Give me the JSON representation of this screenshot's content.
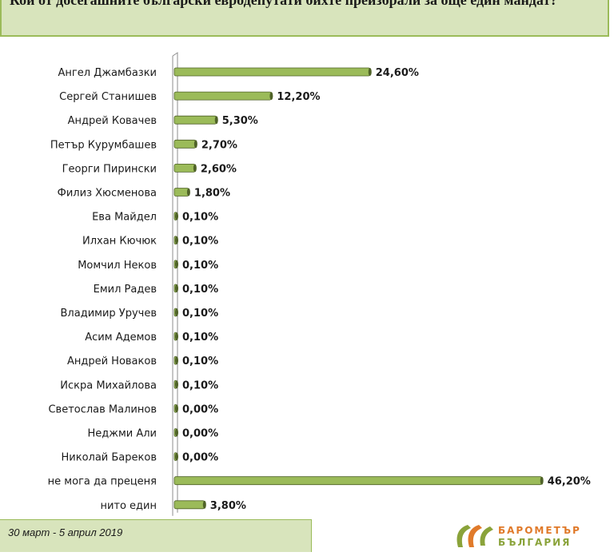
{
  "title": "Кои от досегашните български евродепутати бихте преизбрали за още един мандат?",
  "footer": {
    "period": "30 март - 5 април 2019"
  },
  "logo": {
    "line1": "БАРОМЕТЪР",
    "line2": "БЪЛГАРИЯ"
  },
  "colors": {
    "bar": "#9bbb59",
    "bar_dark": "#4f6228",
    "title_bg": "#d8e4bc",
    "logo_orange": "#e07a2a",
    "logo_green": "#8aa33a"
  },
  "chart_data": {
    "type": "bar",
    "orientation": "horizontal",
    "categories": [
      "Ангел Джамбазки",
      "Сергей Станишев",
      "Андрей Ковачев",
      "Петър Курумбашев",
      "Георги Пирински",
      "Филиз Хюсменова",
      "Ева Майдел",
      "Илхан Кючюк",
      "Момчил Неков",
      "Емил Радев",
      "Владимир Уручев",
      "Асим Адемов",
      "Андрей Новаков",
      "Искра Михайлова",
      "Светослав Малинов",
      "Неджми Али",
      "Николай Бареков",
      "не мога да преценя",
      "нито един"
    ],
    "values": [
      24.6,
      12.2,
      5.3,
      2.7,
      2.6,
      1.8,
      0.1,
      0.1,
      0.1,
      0.1,
      0.1,
      0.1,
      0.1,
      0.1,
      0.0,
      0.0,
      0.0,
      46.2,
      3.8
    ],
    "labels": [
      "24,60%",
      "12,20%",
      "5,30%",
      "2,70%",
      "2,60%",
      "1,80%",
      "0,10%",
      "0,10%",
      "0,10%",
      "0,10%",
      "0,10%",
      "0,10%",
      "0,10%",
      "0,10%",
      "0,00%",
      "0,00%",
      "0,00%",
      "46,20%",
      "3,80%"
    ],
    "xlim": [
      0,
      50
    ],
    "grid": false,
    "legend": "none"
  }
}
